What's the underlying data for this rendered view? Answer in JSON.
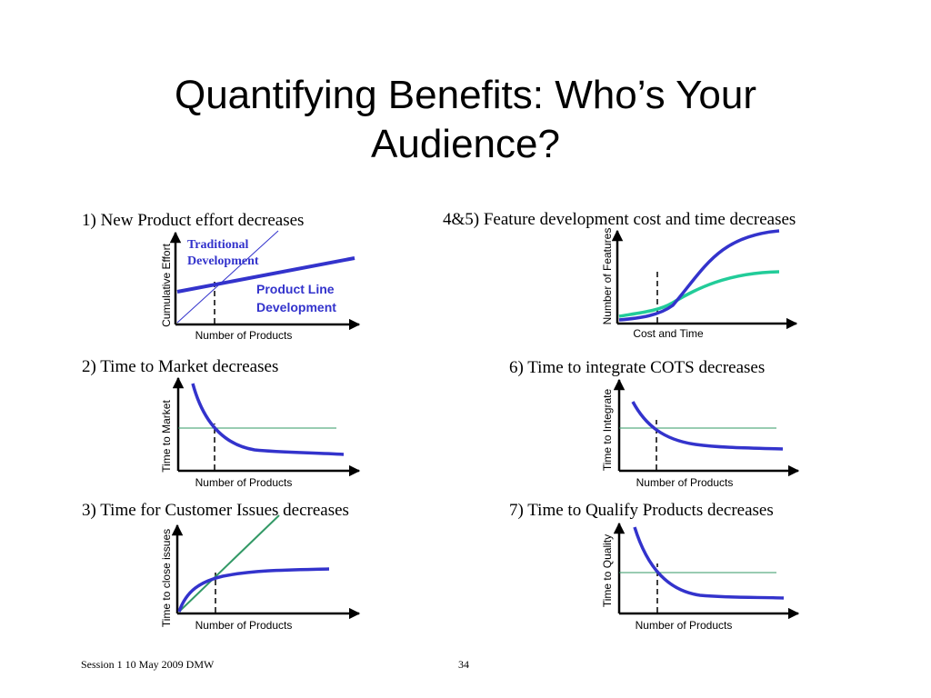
{
  "slide": {
    "title_lines": [
      "Quantifying Benefits: Who’s Your",
      "Audience?"
    ],
    "footer_left": "Session 1 10 May 2009 DMW",
    "page_number": "34"
  },
  "colors": {
    "blue": "#3333cc",
    "teal": "#22cc99",
    "green": "#339966",
    "axis": "#000000"
  },
  "panels": [
    {
      "caption": "1) New Product effort decreases",
      "ylabel": "Cumulative Effort",
      "xlabel": "Number of Products",
      "annotations": [
        "Traditional",
        "Development",
        "Product Line",
        "Development"
      ]
    },
    {
      "caption": "4&5) Feature development cost and time decreases",
      "ylabel": "Number of Features",
      "xlabel": "Cost and Time"
    },
    {
      "caption": "2) Time to Market decreases",
      "ylabel": "Time to Market",
      "xlabel": "Number of Products"
    },
    {
      "caption": "6) Time to integrate COTS decreases",
      "ylabel": "Time to Integrate",
      "xlabel": "Number of Products"
    },
    {
      "caption": "3) Time for Customer Issues decreases",
      "ylabel": "Time to close issues",
      "xlabel": "Number of Products"
    },
    {
      "caption": "7) Time to Qualify Products decreases",
      "ylabel": "Time to Quality",
      "xlabel": "Number of Products"
    }
  ]
}
